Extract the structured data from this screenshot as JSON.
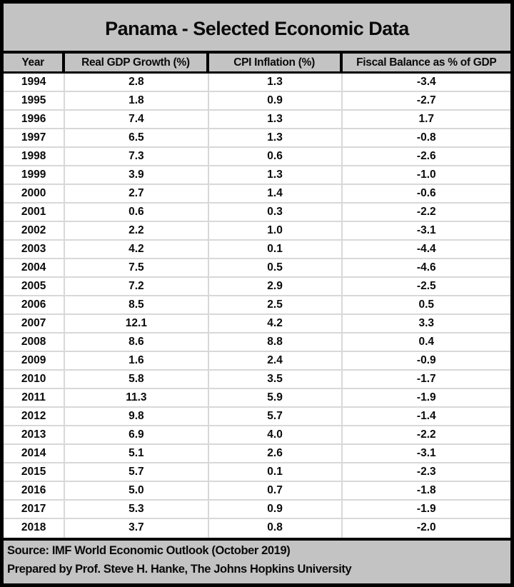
{
  "title": "Panama - Selected Economic Data",
  "table": {
    "columns": [
      "Year",
      "Real GDP Growth (%)",
      "CPI Inflation (%)",
      "Fiscal Balance as % of GDP"
    ],
    "rows": [
      [
        "1994",
        "2.8",
        "1.3",
        "-3.4"
      ],
      [
        "1995",
        "1.8",
        "0.9",
        "-2.7"
      ],
      [
        "1996",
        "7.4",
        "1.3",
        "1.7"
      ],
      [
        "1997",
        "6.5",
        "1.3",
        "-0.8"
      ],
      [
        "1998",
        "7.3",
        "0.6",
        "-2.6"
      ],
      [
        "1999",
        "3.9",
        "1.3",
        "-1.0"
      ],
      [
        "2000",
        "2.7",
        "1.4",
        "-0.6"
      ],
      [
        "2001",
        "0.6",
        "0.3",
        "-2.2"
      ],
      [
        "2002",
        "2.2",
        "1.0",
        "-3.1"
      ],
      [
        "2003",
        "4.2",
        "0.1",
        "-4.4"
      ],
      [
        "2004",
        "7.5",
        "0.5",
        "-4.6"
      ],
      [
        "2005",
        "7.2",
        "2.9",
        "-2.5"
      ],
      [
        "2006",
        "8.5",
        "2.5",
        "0.5"
      ],
      [
        "2007",
        "12.1",
        "4.2",
        "3.3"
      ],
      [
        "2008",
        "8.6",
        "8.8",
        "0.4"
      ],
      [
        "2009",
        "1.6",
        "2.4",
        "-0.9"
      ],
      [
        "2010",
        "5.8",
        "3.5",
        "-1.7"
      ],
      [
        "2011",
        "11.3",
        "5.9",
        "-1.9"
      ],
      [
        "2012",
        "9.8",
        "5.7",
        "-1.4"
      ],
      [
        "2013",
        "6.9",
        "4.0",
        "-2.2"
      ],
      [
        "2014",
        "5.1",
        "2.6",
        "-3.1"
      ],
      [
        "2015",
        "5.7",
        "0.1",
        "-2.3"
      ],
      [
        "2016",
        "5.0",
        "0.7",
        "-1.8"
      ],
      [
        "2017",
        "5.3",
        "0.9",
        "-1.9"
      ],
      [
        "2018",
        "3.7",
        "0.8",
        "-2.0"
      ]
    ]
  },
  "footer": {
    "source": "Source: IMF World Economic Outlook (October 2019)",
    "prepared": "Prepared by Prof. Steve H. Hanke, The Johns Hopkins University"
  },
  "colors": {
    "band_gray": "#c3c3c3",
    "border_black": "#000000",
    "grid_gray": "#d8d8d8",
    "data_bg": "#ffffff",
    "text": "#0a0a0a"
  },
  "chart_data": {
    "type": "table",
    "title": "Panama - Selected Economic Data",
    "columns": [
      "Year",
      "Real GDP Growth (%)",
      "CPI Inflation (%)",
      "Fiscal Balance as % of GDP"
    ],
    "x": [
      1994,
      1995,
      1996,
      1997,
      1998,
      1999,
      2000,
      2001,
      2002,
      2003,
      2004,
      2005,
      2006,
      2007,
      2008,
      2009,
      2010,
      2011,
      2012,
      2013,
      2014,
      2015,
      2016,
      2017,
      2018
    ],
    "series": [
      {
        "name": "Real GDP Growth (%)",
        "values": [
          2.8,
          1.8,
          7.4,
          6.5,
          7.3,
          3.9,
          2.7,
          0.6,
          2.2,
          4.2,
          7.5,
          7.2,
          8.5,
          12.1,
          8.6,
          1.6,
          5.8,
          11.3,
          9.8,
          6.9,
          5.1,
          5.7,
          5.0,
          5.3,
          3.7
        ]
      },
      {
        "name": "CPI Inflation (%)",
        "values": [
          1.3,
          0.9,
          1.3,
          1.3,
          0.6,
          1.3,
          1.4,
          0.3,
          1.0,
          0.1,
          0.5,
          2.9,
          2.5,
          4.2,
          8.8,
          2.4,
          3.5,
          5.9,
          5.7,
          4.0,
          2.6,
          0.1,
          0.7,
          0.9,
          0.8
        ]
      },
      {
        "name": "Fiscal Balance as % of GDP",
        "values": [
          -3.4,
          -2.7,
          1.7,
          -0.8,
          -2.6,
          -1.0,
          -0.6,
          -2.2,
          -3.1,
          -4.4,
          -4.6,
          -2.5,
          0.5,
          3.3,
          0.4,
          -0.9,
          -1.7,
          -1.9,
          -1.4,
          -2.2,
          -3.1,
          -2.3,
          -1.8,
          -1.9,
          -2.0
        ]
      }
    ],
    "annotations": [
      "Source: IMF World Economic Outlook (October 2019)",
      "Prepared by Prof. Steve H. Hanke, The Johns Hopkins University"
    ],
    "layout": {
      "grid": true,
      "legend_position": "none"
    }
  }
}
